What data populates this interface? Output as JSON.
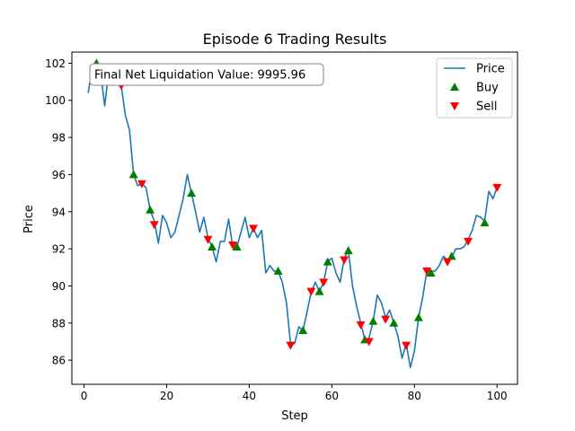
{
  "chart_data": {
    "type": "line",
    "title": "Episode 6 Trading Results",
    "xlabel": "Step",
    "ylabel": "Price",
    "xlim": [
      -2.95,
      104.95
    ],
    "ylim": [
      84.7,
      102.6
    ],
    "xticks": [
      0,
      20,
      40,
      60,
      80,
      100
    ],
    "yticks": [
      86,
      88,
      90,
      92,
      94,
      96,
      98,
      100,
      102
    ],
    "annotation": "Final Net Liquidation Value: 9995.96",
    "legend_position": "upper right",
    "colors": {
      "price": "#1f77b4",
      "buy": "#008000",
      "sell": "#ff0000"
    },
    "series": [
      {
        "name": "Price",
        "kind": "line",
        "x": [
          1,
          2,
          3,
          4,
          5,
          6,
          7,
          8,
          9,
          10,
          11,
          12,
          13,
          14,
          15,
          16,
          17,
          18,
          19,
          20,
          21,
          22,
          23,
          24,
          25,
          26,
          27,
          28,
          29,
          30,
          31,
          32,
          33,
          34,
          35,
          36,
          37,
          38,
          39,
          40,
          41,
          42,
          43,
          44,
          45,
          46,
          47,
          48,
          49,
          50,
          51,
          52,
          53,
          54,
          55,
          56,
          57,
          58,
          59,
          60,
          61,
          62,
          63,
          64,
          65,
          66,
          67,
          68,
          69,
          70,
          71,
          72,
          73,
          74,
          75,
          76,
          77,
          78,
          79,
          80,
          81,
          82,
          83,
          84,
          85,
          86,
          87,
          88,
          89,
          90,
          91,
          92,
          93,
          94,
          95,
          96,
          97,
          98,
          99,
          100
        ],
        "y": [
          100.4,
          101.8,
          102.0,
          101.5,
          99.7,
          101.6,
          101.3,
          101.0,
          100.8,
          99.2,
          98.4,
          96.0,
          95.4,
          95.5,
          95.3,
          94.1,
          93.5,
          92.3,
          93.8,
          93.4,
          92.6,
          92.9,
          93.8,
          94.7,
          96.0,
          95.0,
          94.0,
          92.9,
          93.7,
          92.6,
          92.1,
          91.3,
          92.4,
          92.4,
          93.6,
          92.1,
          92.1,
          92.9,
          93.7,
          92.6,
          93.1,
          92.6,
          93.0,
          90.7,
          91.1,
          90.8,
          90.8,
          90.2,
          89.1,
          86.9,
          86.9,
          87.8,
          87.6,
          88.6,
          89.7,
          90.2,
          89.7,
          90.2,
          91.3,
          91.5,
          90.7,
          90.2,
          91.5,
          91.9,
          90.0,
          88.9,
          88.0,
          87.1,
          87.2,
          88.1,
          89.5,
          89.1,
          88.3,
          88.7,
          88.0,
          87.3,
          86.1,
          86.9,
          85.6,
          86.5,
          88.3,
          89.4,
          90.8,
          90.8,
          90.8,
          91.1,
          91.6,
          91.4,
          91.5,
          92.0,
          92.0,
          92.1,
          92.5,
          93.0,
          93.8,
          93.7,
          93.5,
          95.1,
          94.7,
          95.3
        ]
      },
      {
        "name": "Buy",
        "kind": "marker",
        "marker": "triangle-up",
        "x": [
          3,
          12,
          16,
          26,
          31,
          37,
          47,
          53,
          57,
          59,
          64,
          68,
          70,
          75,
          81,
          84,
          89,
          97
        ],
        "y": [
          102.0,
          96.0,
          94.1,
          95.0,
          92.1,
          92.1,
          90.8,
          87.6,
          89.7,
          91.3,
          91.9,
          87.1,
          88.1,
          88.0,
          88.3,
          90.7,
          91.6,
          93.4
        ]
      },
      {
        "name": "Sell",
        "kind": "marker",
        "marker": "triangle-down",
        "x": [
          9,
          14,
          17,
          30,
          36,
          41,
          50,
          55,
          58,
          63,
          67,
          69,
          73,
          78,
          83,
          88,
          93,
          100
        ],
        "y": [
          100.8,
          95.5,
          93.3,
          92.5,
          92.2,
          93.1,
          86.8,
          89.7,
          90.2,
          91.4,
          87.9,
          87.0,
          88.2,
          86.8,
          90.8,
          91.3,
          92.4,
          95.3
        ]
      }
    ]
  }
}
